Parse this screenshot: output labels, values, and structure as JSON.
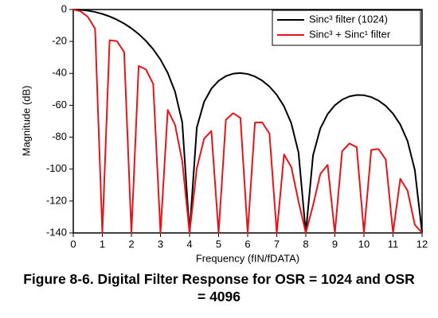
{
  "chart_data": {
    "type": "line",
    "title": "Figure 8-6. Digital Filter Response for OSR = 1024 and OSR = 4096",
    "x_label": "Frequency (fIN/fDATA)",
    "y_label": "Magnitude (dB)",
    "x": [
      0,
      0.25,
      0.5,
      0.75,
      1,
      1.25,
      1.5,
      1.75,
      2,
      2.25,
      2.5,
      2.75,
      3,
      3.25,
      3.5,
      3.75,
      4,
      4.25,
      4.5,
      4.75,
      5,
      5.25,
      5.5,
      5.75,
      6,
      6.25,
      6.5,
      6.75,
      7,
      7.25,
      7.5,
      7.75,
      8,
      8.25,
      8.5,
      8.75,
      9,
      9.25,
      9.5,
      9.75,
      10,
      10.25,
      10.5,
      10.75,
      11,
      11.25,
      11.5,
      11.75,
      12
    ],
    "series": [
      {
        "name": "Sinc³ filter (1024)",
        "color": "#000000",
        "values": [
          0,
          -0.17,
          -0.67,
          -1.52,
          -2.74,
          -4.33,
          -6.33,
          -8.79,
          -11.77,
          -15.34,
          -19.65,
          -24.87,
          -31.36,
          -39.74,
          -51.38,
          -70.74,
          -140,
          -73.99,
          -57.93,
          -49.62,
          -44.67,
          -41.72,
          -40.19,
          -39.79,
          -40.39,
          -41.96,
          -44.55,
          -48.27,
          -53.44,
          -60.64,
          -71.24,
          -89.65,
          -140,
          -91.28,
          -74.5,
          -65.55,
          -59.99,
          -56.49,
          -54.43,
          -53.55,
          -53.7,
          -54.85,
          -57.03,
          -60.4,
          -65.22,
          -72.09,
          -82.38,
          -100.5,
          -140
        ]
      },
      {
        "name": "Sinc³ + Sinc¹ filter",
        "color": "#e8141b",
        "values": [
          0,
          -1.08,
          -4.59,
          -11.97,
          -140,
          -19.22,
          -19.79,
          -26.6,
          -140,
          -35.34,
          -37.55,
          -46.61,
          -140,
          -62.93,
          -72.2,
          -95.17,
          -140,
          -99.51,
          -80.94,
          -76.11,
          -140,
          -69.08,
          -64.94,
          -67.94,
          -140,
          -70.83,
          -70.75,
          -77.81,
          -140,
          -90.8,
          -98.68,
          -120.39,
          -140,
          -122.56,
          -103.03,
          -97.34,
          -140,
          -88.77,
          -83.93,
          -86.28,
          -140,
          -88.02,
          -87.4,
          -93.98,
          -140,
          -106.07,
          -113.54,
          -134.85,
          -140
        ]
      }
    ],
    "xlim": [
      0,
      12
    ],
    "xticks": [
      0,
      1,
      2,
      3,
      4,
      5,
      6,
      7,
      8,
      9,
      10,
      11,
      12
    ],
    "ylim": [
      -140,
      0
    ],
    "yticks": [
      -140,
      -120,
      -100,
      -80,
      -60,
      -40,
      -20,
      0
    ],
    "legend": "top-right"
  }
}
